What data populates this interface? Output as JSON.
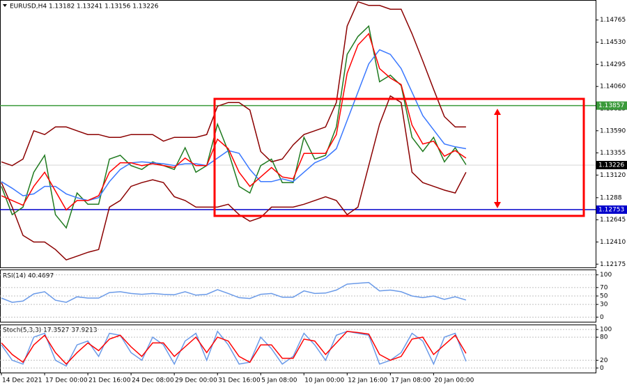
{
  "chart_data": [
    {
      "type": "line",
      "title": "EURUSD,H4  1.13182 1.13241 1.13156 1.13226",
      "xlim": [
        -0.13,
        55
      ],
      "xticks": [
        {
          "value": 0,
          "label": "14 Dec 2021"
        },
        {
          "value": 4,
          "label": "17 Dec 00:00"
        },
        {
          "value": 8,
          "label": "21 Dec 16:00"
        },
        {
          "value": 12,
          "label": "24 Dec 08:00"
        },
        {
          "value": 16,
          "label": "29 Dec 00:00"
        },
        {
          "value": 20,
          "label": "31 Dec 16:00"
        },
        {
          "value": 24,
          "label": "5 Jan 08:00"
        },
        {
          "value": 28,
          "label": "10 Jan 00:00"
        },
        {
          "value": 32,
          "label": "12 Jan 16:00"
        },
        {
          "value": 36,
          "label": "17 Jan 08:00"
        },
        {
          "value": 40,
          "label": "20 Jan 00:00"
        }
      ],
      "ylim": [
        1.1214,
        1.1497
      ],
      "yticks": [
        1.12175,
        {
          "value": 1.1241,
          "label": "1.12410"
        },
        1.12645,
        1.1288,
        {
          "value": 1.1312,
          "label": "1.13120"
        },
        1.13355,
        {
          "value": 1.1359,
          "label": "1.13590"
        },
        1.13825,
        {
          "value": 1.1406,
          "label": "1.14060"
        },
        1.14295,
        {
          "value": 1.1453,
          "label": "1.14530"
        },
        1.14765
      ],
      "hlines": [
        {
          "value": 1.13857,
          "color": "#3a9a3a"
        },
        {
          "value": 1.12753,
          "color": "#0000cc"
        }
      ],
      "last_price": 1.13226,
      "series": [
        {
          "color": "#8b0000",
          "values": [
            1.1326,
            1.1322,
            1.1329,
            1.1359,
            1.1355,
            1.1363,
            1.1363,
            1.1359,
            1.1355,
            1.1355,
            1.1352,
            1.1352,
            1.1355,
            1.1355,
            1.1355,
            1.1348,
            1.1352,
            1.1352,
            1.1352,
            1.1355,
            1.1385,
            1.1389,
            1.1389,
            1.1381,
            1.1337,
            1.1326,
            1.1329,
            1.1344,
            1.1355,
            1.1359,
            1.1363,
            1.1389,
            1.147,
            1.1496,
            1.1492,
            1.1492,
            1.1488,
            1.1488,
            1.1462,
            1.1433,
            1.1403,
            1.1374,
            1.1363,
            1.1363
          ]
        },
        {
          "color": "#8b0000",
          "values": [
            1.1304,
            1.1278,
            1.1248,
            1.1241,
            1.1241,
            1.1233,
            1.1222,
            1.1226,
            1.123,
            1.1233,
            1.1278,
            1.1285,
            1.13,
            1.1304,
            1.1307,
            1.1304,
            1.1289,
            1.1285,
            1.1278,
            1.1278,
            1.1278,
            1.1281,
            1.127,
            1.1263,
            1.1267,
            1.1278,
            1.1278,
            1.1278,
            1.1281,
            1.1285,
            1.1289,
            1.1285,
            1.127,
            1.1278,
            1.1322,
            1.1366,
            1.1396,
            1.1389,
            1.1315,
            1.1304,
            1.13,
            1.1296,
            1.1293,
            1.1315
          ]
        },
        {
          "color": "#1f7a1f",
          "values": [
            1.13,
            1.127,
            1.1278,
            1.1315,
            1.1333,
            1.127,
            1.1256,
            1.1293,
            1.1281,
            1.1281,
            1.1329,
            1.1333,
            1.1322,
            1.1318,
            1.1326,
            1.1322,
            1.1318,
            1.1341,
            1.1315,
            1.1322,
            1.1366,
            1.1337,
            1.13,
            1.1293,
            1.1322,
            1.1329,
            1.1304,
            1.1304,
            1.1352,
            1.1329,
            1.1333,
            1.1363,
            1.144,
            1.1459,
            1.147,
            1.1411,
            1.1418,
            1.1407,
            1.1352,
            1.1337,
            1.1352,
            1.1326,
            1.1341,
            1.1323
          ]
        },
        {
          "color": "#3a78ff",
          "values": [
            1.1305,
            1.1298,
            1.129,
            1.1292,
            1.13,
            1.13,
            1.1292,
            1.1288,
            1.1285,
            1.1288,
            1.1305,
            1.1318,
            1.1325,
            1.1326,
            1.1325,
            1.1324,
            1.1322,
            1.1324,
            1.1324,
            1.1322,
            1.133,
            1.1338,
            1.1335,
            1.1318,
            1.1305,
            1.1305,
            1.1308,
            1.1305,
            1.1315,
            1.1325,
            1.133,
            1.134,
            1.137,
            1.14,
            1.143,
            1.1445,
            1.144,
            1.1425,
            1.14,
            1.1375,
            1.136,
            1.1345,
            1.1342,
            1.134
          ]
        },
        {
          "color": "#ff0000",
          "values": [
            1.129,
            1.1285,
            1.128,
            1.13,
            1.1315,
            1.1295,
            1.1275,
            1.1285,
            1.1285,
            1.129,
            1.1315,
            1.1325,
            1.1325,
            1.1322,
            1.1324,
            1.1322,
            1.132,
            1.133,
            1.1322,
            1.1322,
            1.135,
            1.134,
            1.1315,
            1.13,
            1.131,
            1.132,
            1.131,
            1.1308,
            1.1335,
            1.1335,
            1.1335,
            1.1355,
            1.142,
            1.145,
            1.1462,
            1.1425,
            1.1415,
            1.1408,
            1.1365,
            1.1345,
            1.1348,
            1.1332,
            1.1338,
            1.133
          ]
        }
      ]
    },
    {
      "type": "line",
      "title": "RSI(14) 40.4697",
      "ylim": [
        -11,
        111
      ],
      "yticks": [
        0,
        30,
        50,
        70,
        100
      ],
      "grid": true,
      "series": [
        {
          "color": "#6a9ae8",
          "values": [
            45,
            35,
            38,
            55,
            60,
            40,
            35,
            48,
            45,
            45,
            58,
            60,
            56,
            54,
            56,
            54,
            53,
            60,
            52,
            54,
            65,
            56,
            46,
            44,
            54,
            56,
            47,
            47,
            62,
            56,
            57,
            64,
            78,
            80,
            82,
            62,
            64,
            60,
            50,
            46,
            50,
            42,
            48,
            40.4697
          ]
        }
      ]
    },
    {
      "type": "line",
      "title": "Stoch(5,3,3) 17.3527 37.9213",
      "ylim": [
        -12,
        111
      ],
      "yticks": [
        0,
        20,
        80,
        100
      ],
      "grid": true,
      "series": [
        {
          "color": "#6a9ae8",
          "values": [
            60,
            20,
            10,
            80,
            90,
            20,
            5,
            60,
            70,
            30,
            90,
            85,
            40,
            20,
            80,
            60,
            10,
            70,
            90,
            20,
            95,
            60,
            10,
            15,
            80,
            50,
            10,
            30,
            90,
            60,
            20,
            85,
            95,
            90,
            85,
            10,
            20,
            40,
            90,
            70,
            10,
            80,
            90,
            17.3527
          ]
        },
        {
          "color": "#ff0000",
          "values": [
            65,
            35,
            15,
            60,
            85,
            40,
            10,
            40,
            65,
            45,
            75,
            85,
            55,
            30,
            65,
            65,
            30,
            55,
            80,
            40,
            80,
            70,
            30,
            15,
            60,
            60,
            25,
            25,
            75,
            70,
            35,
            65,
            95,
            92,
            88,
            35,
            20,
            30,
            75,
            80,
            35,
            60,
            85,
            37.9213
          ]
        }
      ]
    }
  ]
}
